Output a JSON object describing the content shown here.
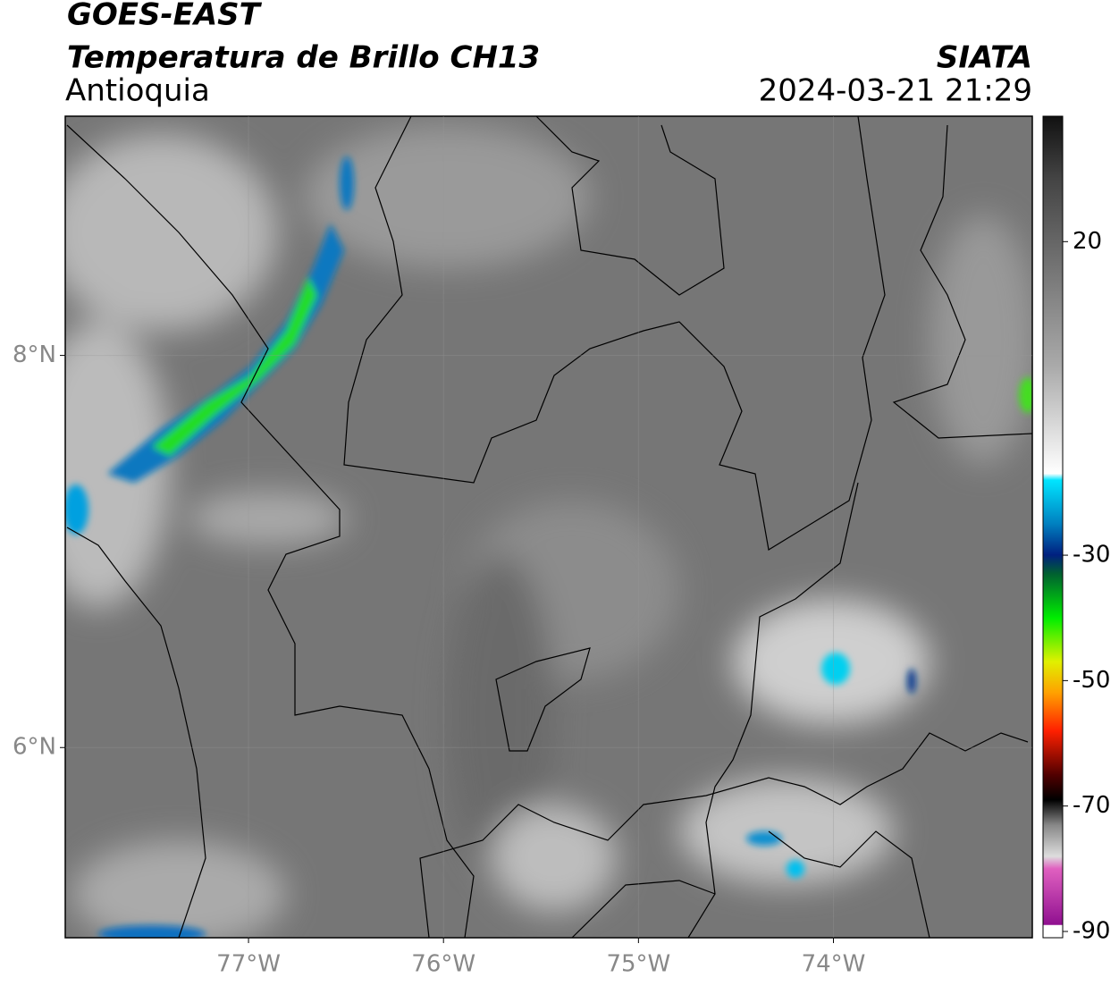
{
  "header": {
    "title": "GOES-EAST",
    "subtitle": "Temperatura de Brillo CH13",
    "region": "Antioquia",
    "source": "SIATA",
    "datetime": "2024-03-21 21:29"
  },
  "map": {
    "xlim": [
      -77.94,
      -72.98
    ],
    "ylim": [
      5.03,
      9.22
    ],
    "xticks": [
      {
        "value": -77,
        "label": "77°W"
      },
      {
        "value": -76,
        "label": "76°W"
      },
      {
        "value": -75,
        "label": "75°W"
      },
      {
        "value": -74,
        "label": "74°W"
      }
    ],
    "yticks": [
      {
        "value": 8,
        "label": "8°N"
      },
      {
        "value": 6,
        "label": "6°N"
      }
    ],
    "grid": true
  },
  "colorbar": {
    "lim": [
      -91,
      40
    ],
    "ticks": [
      20,
      -30,
      -50,
      -70,
      -90
    ]
  }
}
